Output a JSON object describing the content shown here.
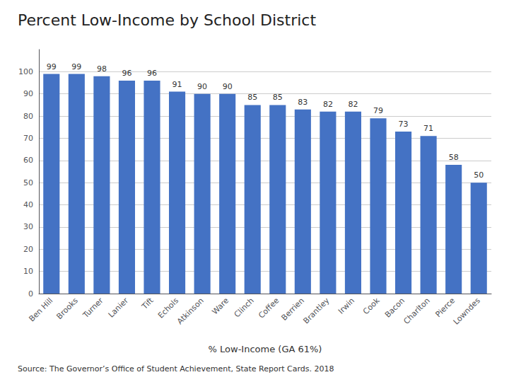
{
  "chart_data": {
    "type": "bar",
    "title": "Percent Low-Income by School District",
    "categories": [
      "Ben Hill",
      "Brooks",
      "Turner",
      "Lanier",
      "Tift",
      "Echols",
      "Atkinson",
      "Ware",
      "Clinch",
      "Coffee",
      "Berrien",
      "Brantley",
      "Irwin",
      "Cook",
      "Bacon",
      "Charlton",
      "Pierce",
      "Lowndes"
    ],
    "values": [
      99,
      99,
      98,
      96,
      96,
      91,
      90,
      90,
      85,
      85,
      83,
      82,
      82,
      79,
      73,
      71,
      58,
      50
    ],
    "color": "#4472C4",
    "xlabel": "% Low-Income (GA 61%)",
    "ylim": [
      0,
      110
    ],
    "yticks": [
      0,
      10,
      20,
      30,
      40,
      50,
      60,
      70,
      80,
      90,
      100
    ],
    "grid": true,
    "data_labels": true,
    "annotations": [
      "Source:",
      "The Governor’s Office of Student Achievement, State Report Cards. 2018"
    ]
  }
}
